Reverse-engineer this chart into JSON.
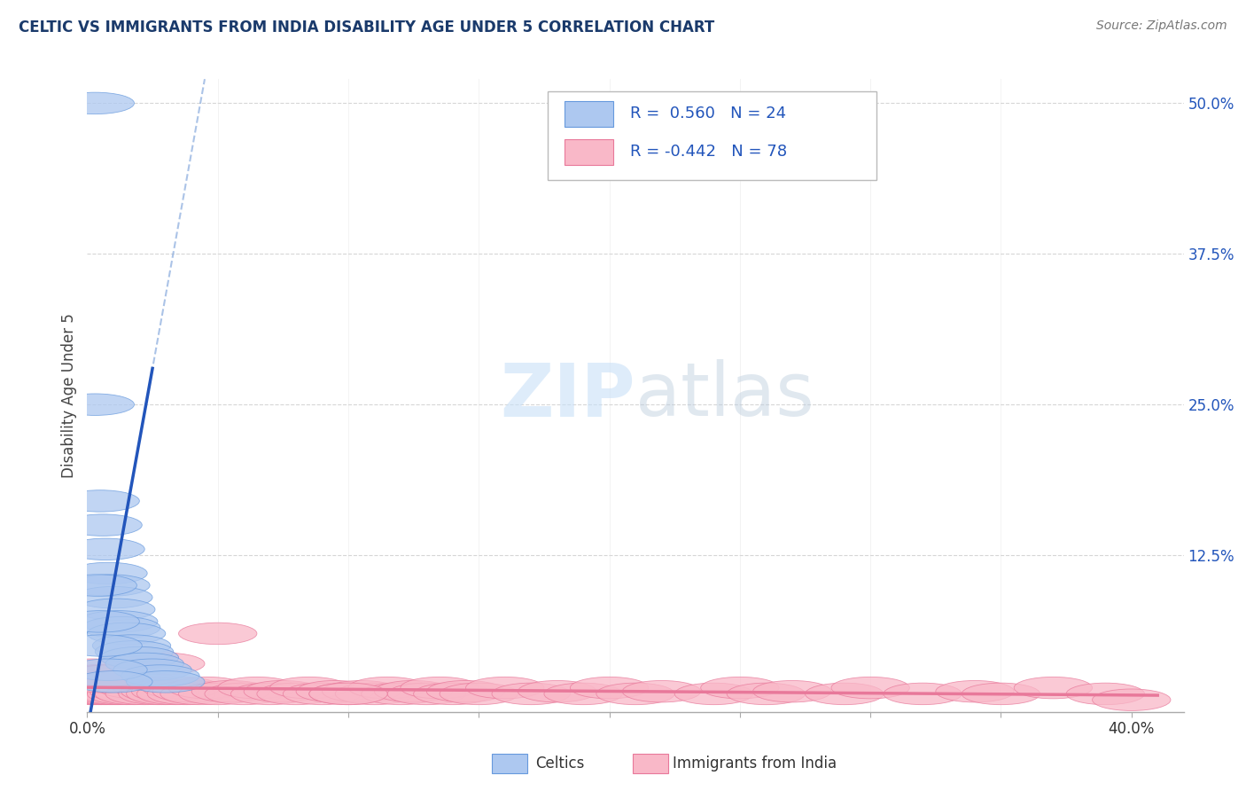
{
  "title": "CELTIC VS IMMIGRANTS FROM INDIA DISABILITY AGE UNDER 5 CORRELATION CHART",
  "source_text": "Source: ZipAtlas.com",
  "ylabel": "Disability Age Under 5",
  "yticks_right": [
    0.0,
    0.125,
    0.25,
    0.375,
    0.5
  ],
  "ytick_labels_right": [
    "",
    "12.5%",
    "25.0%",
    "37.5%",
    "50.0%"
  ],
  "xtick_positions": [
    0.0,
    0.05,
    0.1,
    0.15,
    0.2,
    0.25,
    0.3,
    0.35,
    0.4
  ],
  "xtick_labels": [
    "0.0%",
    "",
    "",
    "",
    "",
    "",
    "",
    "",
    "40.0%"
  ],
  "xlim": [
    0.0,
    0.42
  ],
  "ylim": [
    -0.005,
    0.52
  ],
  "title_color": "#1a3a6b",
  "source_color": "#777777",
  "background_color": "#ffffff",
  "grid_color": "#cccccc",
  "celtic_color": "#adc8f0",
  "india_color": "#f9b8c8",
  "celtic_edge_color": "#6699dd",
  "india_edge_color": "#e8789a",
  "celtic_line_color": "#2255bb",
  "india_line_color": "#e8789a",
  "watermark_color": "#c8e0f8",
  "legend_text_color": "#2255bb",
  "celtic_scatter_x": [
    0.003,
    0.005,
    0.006,
    0.007,
    0.008,
    0.009,
    0.01,
    0.011,
    0.012,
    0.013,
    0.015,
    0.017,
    0.018,
    0.02,
    0.022,
    0.025,
    0.028,
    0.03,
    0.003,
    0.004,
    0.005,
    0.006,
    0.008,
    0.01
  ],
  "celtic_scatter_y": [
    0.5,
    0.17,
    0.15,
    0.13,
    0.11,
    0.1,
    0.09,
    0.08,
    0.07,
    0.065,
    0.06,
    0.05,
    0.045,
    0.04,
    0.035,
    0.03,
    0.025,
    0.02,
    0.25,
    0.1,
    0.07,
    0.05,
    0.03,
    0.02
  ],
  "india_scatter_x": [
    0.001,
    0.002,
    0.003,
    0.004,
    0.005,
    0.006,
    0.007,
    0.008,
    0.009,
    0.01,
    0.011,
    0.012,
    0.013,
    0.015,
    0.016,
    0.018,
    0.019,
    0.02,
    0.022,
    0.025,
    0.027,
    0.028,
    0.03,
    0.032,
    0.034,
    0.036,
    0.038,
    0.04,
    0.043,
    0.046,
    0.05,
    0.055,
    0.06,
    0.065,
    0.07,
    0.075,
    0.08,
    0.085,
    0.09,
    0.095,
    0.1,
    0.105,
    0.11,
    0.115,
    0.12,
    0.125,
    0.13,
    0.135,
    0.14,
    0.145,
    0.15,
    0.16,
    0.17,
    0.18,
    0.19,
    0.2,
    0.21,
    0.22,
    0.24,
    0.25,
    0.26,
    0.27,
    0.29,
    0.3,
    0.32,
    0.34,
    0.35,
    0.37,
    0.39,
    0.4,
    0.002,
    0.004,
    0.006,
    0.008,
    0.02,
    0.03,
    0.05,
    0.1
  ],
  "india_scatter_y": [
    0.015,
    0.01,
    0.012,
    0.01,
    0.015,
    0.01,
    0.012,
    0.01,
    0.015,
    0.01,
    0.012,
    0.01,
    0.015,
    0.01,
    0.012,
    0.01,
    0.015,
    0.02,
    0.01,
    0.015,
    0.01,
    0.012,
    0.01,
    0.012,
    0.01,
    0.015,
    0.01,
    0.012,
    0.01,
    0.015,
    0.01,
    0.012,
    0.01,
    0.015,
    0.01,
    0.012,
    0.01,
    0.015,
    0.01,
    0.012,
    0.01,
    0.012,
    0.01,
    0.015,
    0.01,
    0.012,
    0.01,
    0.015,
    0.01,
    0.012,
    0.01,
    0.015,
    0.01,
    0.012,
    0.01,
    0.015,
    0.01,
    0.012,
    0.01,
    0.015,
    0.01,
    0.012,
    0.01,
    0.015,
    0.01,
    0.012,
    0.01,
    0.015,
    0.01,
    0.005,
    0.03,
    0.025,
    0.02,
    0.025,
    0.04,
    0.035,
    0.06,
    0.01
  ]
}
